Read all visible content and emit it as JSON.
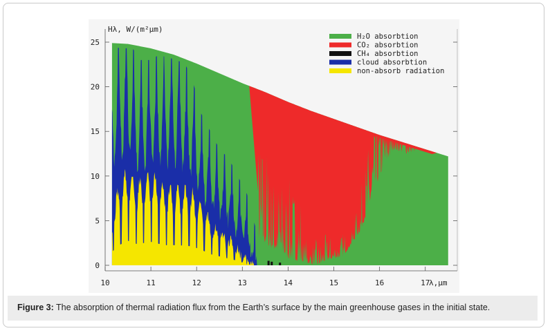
{
  "figure": {
    "caption_label": "Figure 3:",
    "caption_text": " The absorption of thermal radiation flux from the Earth’s surface by the main greenhouse gases in the initial state."
  },
  "chart_data": {
    "type": "area",
    "ylabel": "Hλ, W/(m²μm)",
    "xlabel": "λ,μm",
    "xlim": [
      10,
      17.7
    ],
    "ylim": [
      0,
      26
    ],
    "xticks": [
      10,
      11,
      12,
      13,
      14,
      15,
      16,
      17
    ],
    "yticks": [
      0,
      5,
      10,
      15,
      20,
      25
    ],
    "legend_position": "top-right",
    "colors": {
      "h2o": "#4caf48",
      "co2": "#ee2a2a",
      "ch4": "#111111",
      "cloud": "#1a2ea8",
      "nonabsorb": "#f5e600"
    },
    "legend": [
      {
        "key": "h2o",
        "label": "H₂O absorbtion"
      },
      {
        "key": "co2",
        "label": "CO₂ absorbtion"
      },
      {
        "key": "ch4",
        "label": "CH₄ absorbtion"
      },
      {
        "key": "cloud",
        "label": "cloud absorbtion"
      },
      {
        "key": "nonabsorb",
        "label": "non-absorb radiation"
      }
    ],
    "envelope": {
      "x": [
        10.15,
        10.5,
        11.0,
        11.5,
        12.0,
        12.5,
        13.0,
        13.5,
        14.0,
        14.5,
        15.0,
        15.5,
        16.0,
        16.5,
        17.0,
        17.5
      ],
      "y": [
        24.9,
        24.8,
        24.3,
        23.6,
        22.6,
        21.5,
        20.4,
        19.4,
        18.3,
        17.3,
        16.4,
        15.5,
        14.6,
        13.8,
        13.0,
        12.2
      ]
    },
    "series": [
      {
        "key": "nonabsorb",
        "x": [
          10.15,
          10.3,
          10.5,
          10.7,
          11.0,
          11.3,
          11.6,
          11.9,
          12.1,
          12.3,
          12.5,
          12.7,
          12.9,
          13.1,
          13.25
        ],
        "y": [
          6,
          9,
          11,
          9.5,
          10.5,
          9,
          9,
          8.5,
          7,
          5,
          4,
          3,
          2,
          0.5,
          0
        ]
      },
      {
        "key": "cloud",
        "x": [
          10.15,
          10.3,
          10.5,
          10.7,
          11.0,
          11.3,
          11.6,
          11.9,
          12.1,
          12.3,
          12.5,
          12.7,
          12.9,
          13.1,
          13.3,
          13.35
        ],
        "y": [
          20,
          22,
          23,
          20,
          20,
          21,
          21,
          18,
          14,
          12,
          10,
          9,
          7,
          5,
          1,
          0
        ]
      },
      {
        "key": "co2",
        "x": [
          13.4,
          13.6,
          13.8,
          14.0,
          14.2,
          14.4,
          14.6,
          14.8,
          15.0,
          15.2,
          15.4,
          15.6,
          15.8,
          16.0,
          16.3,
          16.6,
          16.9,
          17.1
        ],
        "y": [
          3,
          2,
          1.5,
          0.8,
          0.5,
          0.3,
          0,
          0.5,
          0.8,
          1.0,
          2.5,
          4,
          7,
          10,
          13,
          12.5,
          13,
          13.3
        ]
      }
    ]
  }
}
